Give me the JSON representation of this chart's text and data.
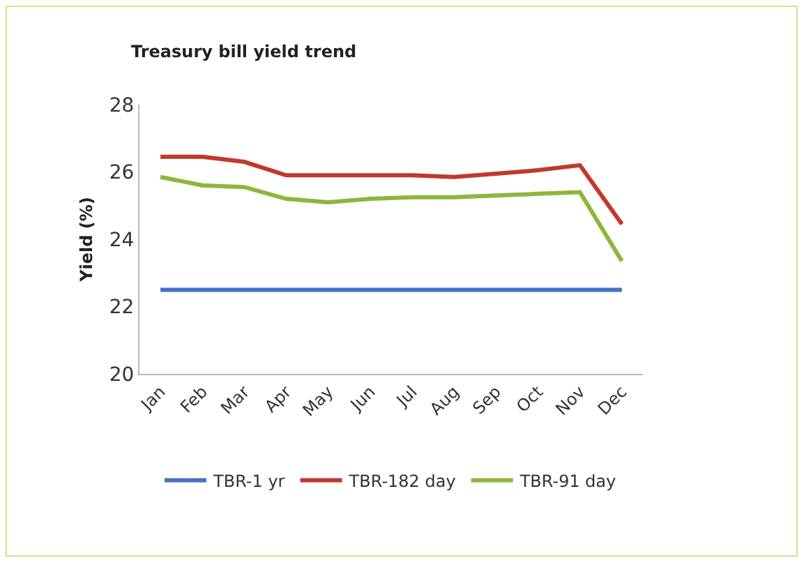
{
  "chart_data": {
    "type": "line",
    "title": "Treasury bill yield trend",
    "ylabel": "Yield (%)",
    "categories": [
      "Jan",
      "Feb",
      "Mar",
      "Apr",
      "May",
      "Jun",
      "Jul",
      "Aug",
      "Sep",
      "Oct",
      "Nov",
      "Dec"
    ],
    "series": [
      {
        "name": "TBR-1 yr",
        "color": "#4472c4",
        "values": [
          22.5,
          22.5,
          22.5,
          22.5,
          22.5,
          22.5,
          22.5,
          22.5,
          22.5,
          22.5,
          22.5,
          22.5
        ]
      },
      {
        "name": "TBR-182 day",
        "color": "#c0392b",
        "values": [
          26.45,
          26.45,
          26.3,
          25.9,
          25.9,
          25.9,
          25.9,
          25.85,
          25.95,
          26.05,
          26.2,
          24.45
        ]
      },
      {
        "name": "TBR-91 day",
        "color": "#8db63c",
        "values": [
          25.85,
          25.6,
          25.55,
          25.2,
          25.1,
          25.2,
          25.25,
          25.25,
          25.3,
          25.35,
          25.4,
          23.35
        ]
      }
    ],
    "ylim": [
      20,
      28
    ],
    "yticks": [
      20,
      22,
      24,
      26,
      28
    ],
    "grid": false,
    "legend": "bottom",
    "marker": "none",
    "line_style": "solid"
  }
}
